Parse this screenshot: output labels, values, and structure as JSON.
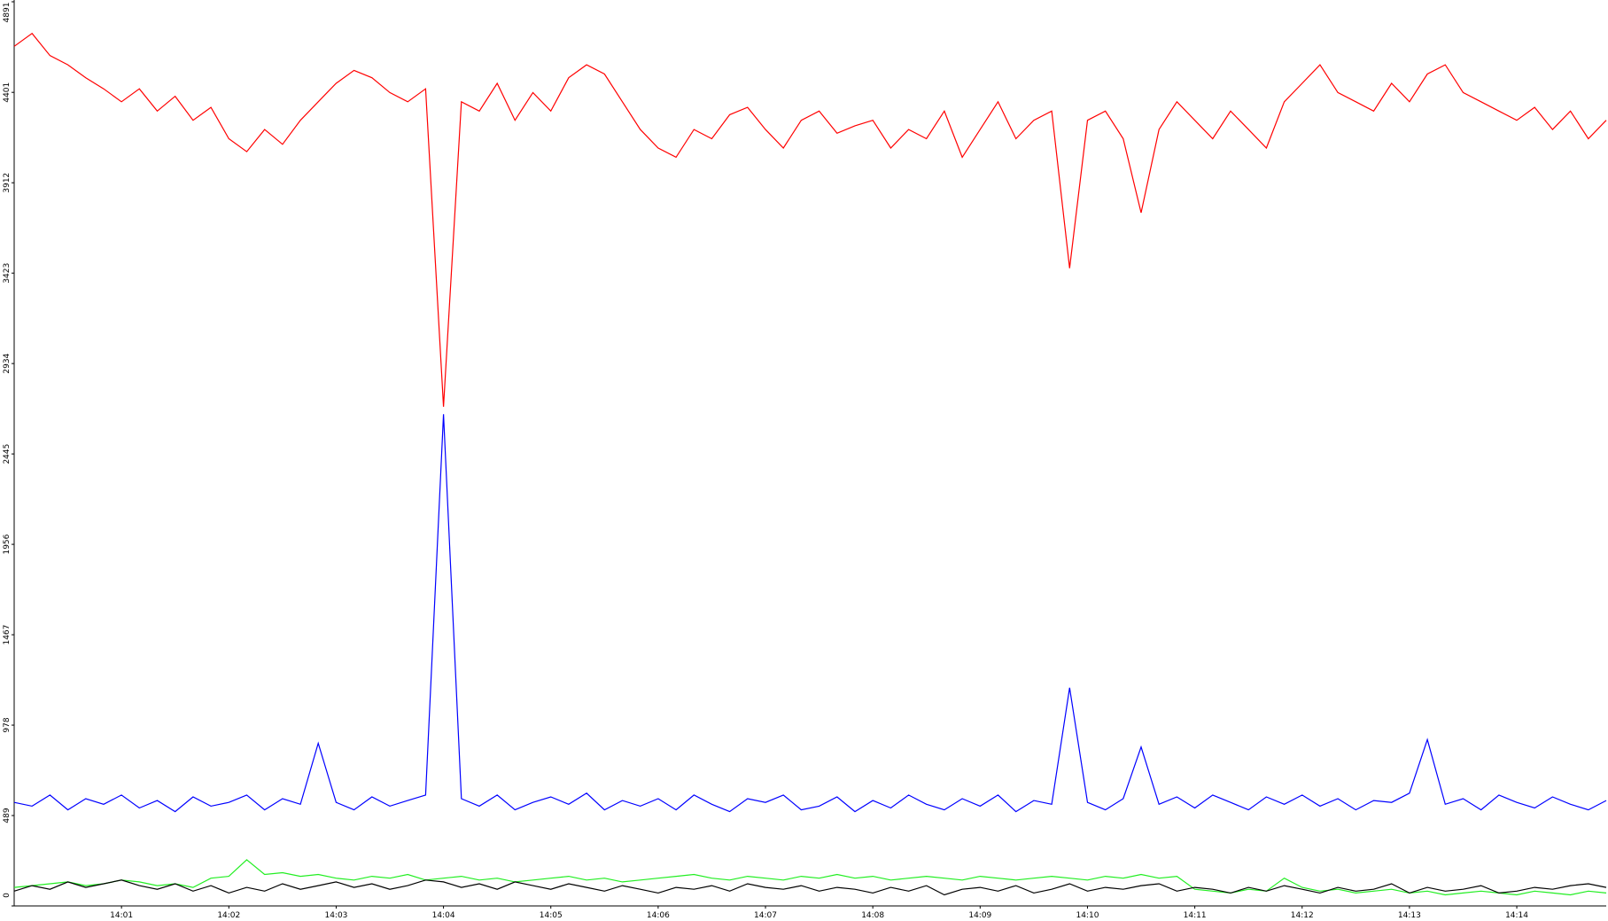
{
  "chart_data": {
    "type": "line",
    "categories": [
      null,
      null,
      null,
      null,
      null,
      null,
      "14:01",
      null,
      null,
      null,
      null,
      null,
      "14:02",
      null,
      null,
      null,
      null,
      null,
      "14:03",
      null,
      null,
      null,
      null,
      null,
      "14:04",
      null,
      null,
      null,
      null,
      null,
      "14:05",
      null,
      null,
      null,
      null,
      null,
      "14:06",
      null,
      null,
      null,
      null,
      null,
      "14:07",
      null,
      null,
      null,
      null,
      null,
      "14:08",
      null,
      null,
      null,
      null,
      null,
      "14:09",
      null,
      null,
      null,
      null,
      null,
      "14:10",
      null,
      null,
      null,
      null,
      null,
      "14:11",
      null,
      null,
      null,
      null,
      null,
      "14:12",
      null,
      null,
      null,
      null,
      null,
      "14:13",
      null,
      null,
      null,
      null,
      null,
      "14:14",
      null,
      null,
      null,
      null,
      null
    ],
    "series": [
      {
        "color": "#ff0000",
        "values": [
          4650,
          4720,
          4600,
          4550,
          4480,
          4420,
          4350,
          4420,
          4300,
          4380,
          4250,
          4320,
          4150,
          4080,
          4200,
          4120,
          4250,
          4350,
          4450,
          4520,
          4480,
          4400,
          4350,
          4420,
          2700,
          4350,
          4300,
          4450,
          4250,
          4400,
          4300,
          4480,
          4550,
          4500,
          4350,
          4200,
          4100,
          4050,
          4200,
          4150,
          4280,
          4320,
          4200,
          4100,
          4250,
          4300,
          4180,
          4220,
          4250,
          4100,
          4200,
          4150,
          4300,
          4050,
          4200,
          4350,
          4150,
          4250,
          4300,
          3450,
          4250,
          4300,
          4150,
          3750,
          4200,
          4350,
          4250,
          4150,
          4300,
          4200,
          4100,
          4350,
          4450,
          4550,
          4400,
          4350,
          4300,
          4450,
          4350,
          4500,
          4550,
          4400,
          4350,
          4300,
          4250,
          4320,
          4200,
          4300,
          4150,
          4250
        ]
      },
      {
        "color": "#0000ff",
        "values": [
          560,
          540,
          600,
          520,
          580,
          550,
          600,
          530,
          570,
          510,
          590,
          540,
          560,
          600,
          520,
          580,
          550,
          880,
          560,
          520,
          590,
          540,
          570,
          600,
          2660,
          580,
          540,
          600,
          520,
          560,
          590,
          550,
          610,
          520,
          570,
          540,
          580,
          520,
          600,
          550,
          510,
          580,
          560,
          600,
          520,
          540,
          590,
          510,
          570,
          530,
          600,
          550,
          520,
          580,
          540,
          600,
          510,
          570,
          550,
          1180,
          560,
          520,
          580,
          860,
          550,
          590,
          530,
          600,
          560,
          520,
          590,
          550,
          600,
          540,
          580,
          520,
          570,
          560,
          610,
          900,
          550,
          580,
          520,
          600,
          560,
          530,
          590,
          550,
          520,
          570
        ]
      },
      {
        "color": "#22ee22",
        "values": [
          100,
          110,
          120,
          130,
          110,
          120,
          140,
          130,
          110,
          120,
          100,
          150,
          160,
          250,
          170,
          180,
          160,
          170,
          150,
          140,
          160,
          150,
          170,
          140,
          150,
          160,
          140,
          150,
          130,
          140,
          150,
          160,
          140,
          150,
          130,
          140,
          150,
          160,
          170,
          150,
          140,
          160,
          150,
          140,
          160,
          150,
          170,
          150,
          160,
          140,
          150,
          160,
          150,
          140,
          160,
          150,
          140,
          150,
          160,
          150,
          140,
          160,
          150,
          170,
          150,
          160,
          90,
          80,
          70,
          90,
          80,
          150,
          100,
          80,
          90,
          70,
          80,
          90,
          70,
          80,
          60,
          70,
          80,
          70,
          60,
          80,
          70,
          60,
          80,
          70
        ]
      },
      {
        "color": "#000000",
        "values": [
          80,
          110,
          90,
          130,
          100,
          120,
          140,
          110,
          90,
          120,
          80,
          110,
          70,
          100,
          80,
          120,
          90,
          110,
          130,
          100,
          120,
          90,
          110,
          140,
          130,
          100,
          120,
          90,
          130,
          110,
          90,
          120,
          100,
          80,
          110,
          90,
          70,
          100,
          90,
          110,
          80,
          120,
          100,
          90,
          110,
          80,
          100,
          90,
          70,
          100,
          80,
          110,
          60,
          90,
          100,
          80,
          110,
          70,
          90,
          120,
          80,
          100,
          90,
          110,
          120,
          80,
          100,
          90,
          70,
          100,
          80,
          110,
          90,
          70,
          100,
          80,
          90,
          120,
          70,
          100,
          80,
          90,
          110,
          70,
          80,
          100,
          90,
          110,
          120,
          100
        ]
      }
    ],
    "ylim": [
      0,
      4891
    ],
    "yticks": [
      0,
      489,
      978,
      1467,
      1956,
      2445,
      2934,
      3423,
      3912,
      4401,
      4891
    ]
  }
}
